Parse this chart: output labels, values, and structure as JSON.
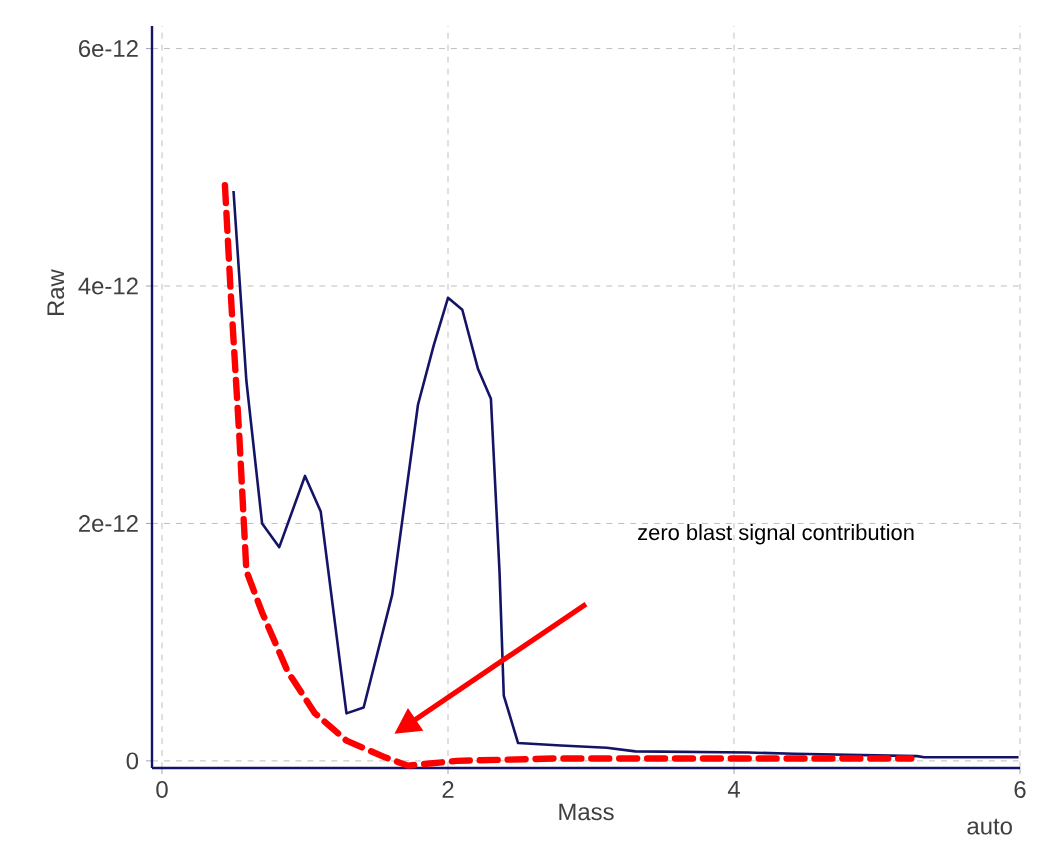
{
  "chart_data": {
    "type": "line",
    "xlabel": "Mass",
    "ylabel": "Raw",
    "xlim": [
      -0.07,
      6.0
    ],
    "ylim": [
      -6e-14,
      6.19e-12
    ],
    "xticks": [
      0,
      2,
      4,
      6
    ],
    "yticks": [
      {
        "value": 0,
        "label": "0"
      },
      {
        "value": 2e-12,
        "label": "2e-12"
      },
      {
        "value": 4e-12,
        "label": "4e-12"
      },
      {
        "value": 6e-12,
        "label": "6e-12"
      }
    ],
    "grid": true,
    "series": [
      {
        "color": "#141466",
        "line_style": "solid",
        "x": [
          0.5,
          0.59,
          0.7,
          0.82,
          1.0,
          1.11,
          1.29,
          1.41,
          1.61,
          1.79,
          1.9,
          2.0,
          2.1,
          2.21,
          2.3,
          2.36,
          2.39,
          2.49,
          2.79,
          3.11,
          3.31,
          4.1,
          4.42,
          5.28,
          5.33,
          5.99
        ],
        "values": [
          4.8e-12,
          3.2e-12,
          2e-12,
          1.8e-12,
          2.4e-12,
          2.1e-12,
          4e-13,
          4.5e-13,
          1.4e-12,
          3e-12,
          3.5e-12,
          3.9e-12,
          3.8e-12,
          3.3e-12,
          3.05e-12,
          1.6e-12,
          5.5e-13,
          1.5e-13,
          1.3e-13,
          1.1e-13,
          8e-14,
          7e-14,
          6e-14,
          4e-14,
          3e-14,
          3e-14
        ]
      },
      {
        "color": "#ff0000",
        "line_style": "dashed",
        "x": [
          0.44,
          0.48,
          0.54,
          0.59,
          0.7,
          0.88,
          1.07,
          1.29,
          1.56,
          1.72,
          2.06,
          2.74,
          5.24
        ],
        "values": [
          4.85e-12,
          3.95e-12,
          2.75e-12,
          1.6e-12,
          1.25e-12,
          7.5e-13,
          4e-13,
          1.7e-13,
          3e-14,
          -4e-14,
          0,
          2e-14,
          2e-14
        ]
      }
    ],
    "annotations": [
      "zero blast signal contribution",
      "auto"
    ]
  }
}
